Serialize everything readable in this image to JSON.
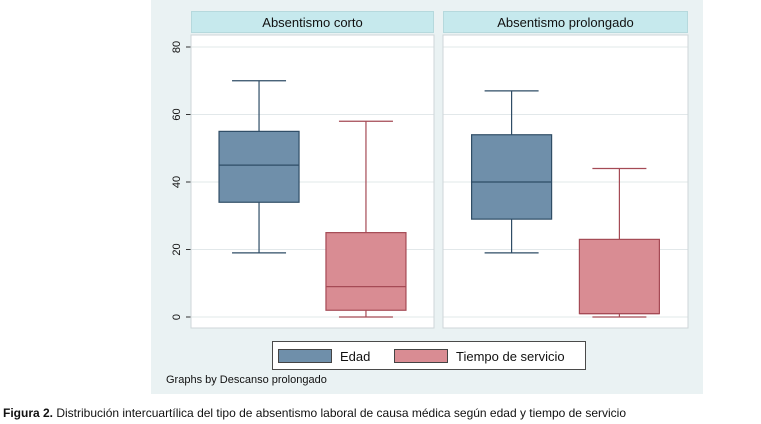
{
  "chart_data": {
    "type": "box",
    "ylim": [
      0,
      80
    ],
    "yticks": [
      0,
      20,
      40,
      60,
      80
    ],
    "ytick_labels": [
      "0",
      "20",
      "40",
      "60",
      "80"
    ],
    "grid": true,
    "legend_position": "bottom",
    "facet_note": "Graphs by Descanso prolongado",
    "series": [
      {
        "name": "Edad",
        "color": "#6f8faa"
      },
      {
        "name": "Tiempo de servicio",
        "color": "#d98c93"
      }
    ],
    "panels": [
      {
        "title": "Absentismo corto",
        "boxes": [
          {
            "series": "Edad",
            "min": 19,
            "q1": 34,
            "median": 45,
            "q3": 55,
            "max": 70
          },
          {
            "series": "Tiempo de servicio",
            "min": 0,
            "q1": 2,
            "median": 9,
            "q3": 25,
            "max": 58
          }
        ]
      },
      {
        "title": "Absentismo prolongado",
        "boxes": [
          {
            "series": "Edad",
            "min": 19,
            "q1": 29,
            "median": 40,
            "q3": 54,
            "max": 67
          },
          {
            "series": "Tiempo de servicio",
            "min": 0,
            "q1": 1,
            "median": 1,
            "q3": 23,
            "max": 44
          }
        ]
      }
    ]
  },
  "caption": {
    "label": "Figura 2.",
    "text": " Distribución intercuartílica del tipo de absentismo laboral de causa médica según edad y tiempo de servicio"
  }
}
